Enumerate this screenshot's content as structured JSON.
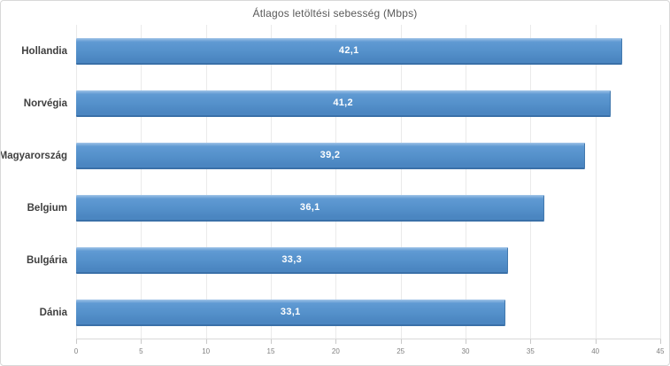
{
  "chart_data": {
    "type": "bar",
    "orientation": "horizontal",
    "title": "Átlagos letöltési sebesség (Mbps)",
    "categories": [
      "Hollandia",
      "Norvégia",
      "Magyarország",
      "Belgium",
      "Bulgária",
      "Dánia"
    ],
    "values": [
      42.1,
      41.2,
      39.2,
      36.1,
      33.3,
      33.1
    ],
    "value_labels": [
      "42,1",
      "41,2",
      "39,2",
      "36,1",
      "33,3",
      "33,1"
    ],
    "xlabel": "",
    "ylabel": "",
    "xlim": [
      0,
      45
    ],
    "x_ticks": [
      0,
      5,
      10,
      15,
      20,
      25,
      30,
      35,
      40,
      45
    ],
    "grid": true,
    "legend_position": "none"
  },
  "colors": {
    "bar_fill": "#5591cb",
    "bar_fill_highlight": "#8fb9e2",
    "bar_border_bottom": "#3a70a8",
    "value_label": "#ffffff",
    "title_text": "#595959",
    "category_text": "#3f3f3f",
    "tick_text": "#7f7f7f",
    "gridline": "#eaeaea",
    "chart_border": "#d8d8d8",
    "background": "#ffffff"
  }
}
